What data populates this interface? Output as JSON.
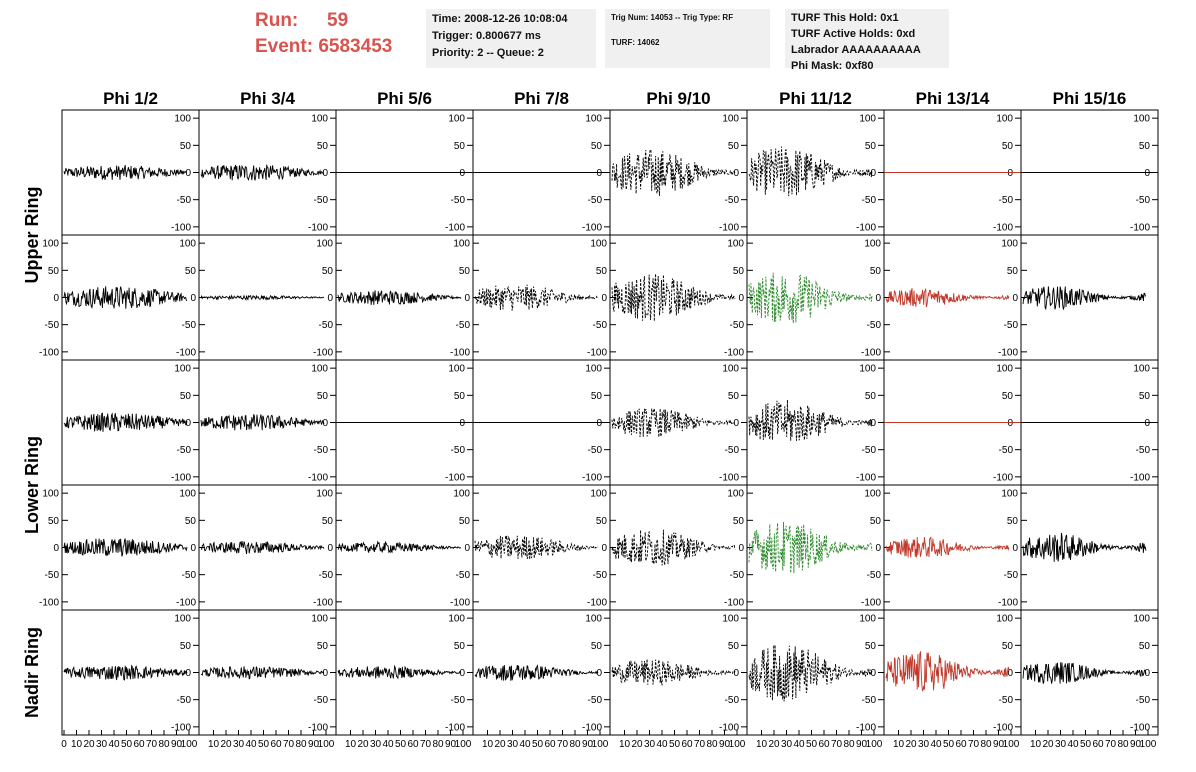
{
  "header": {
    "run_label": "Run:",
    "run_value": "59",
    "event_label": "Event:",
    "event_value": "6583453",
    "time": "Time: 2008-12-26 10:08:04",
    "trigger": "Trigger: 0.800677 ms",
    "priority": "Priority: 2 -- Queue: 2",
    "trig_num": "Trig Num: 14053 -- Trig Type: RF",
    "turf": "TURF: 14062",
    "turf_hold": "TURF This Hold: 0x1",
    "turf_active": "TURF Active Holds: 0xd",
    "labrador": "Labrador AAAAAAAAAA",
    "phi_mask": "Phi Mask: 0xf80"
  },
  "colors": {
    "title_red": "#d9534f",
    "black": "#000000",
    "green": "#2a8a2a",
    "red": "#c0392b",
    "info_bg": "#f0f0f0"
  },
  "chart_data": {
    "type": "line",
    "columns": [
      "Phi 1/2",
      "Phi 3/4",
      "Phi 5/6",
      "Phi 7/8",
      "Phi 9/10",
      "Phi 11/12",
      "Phi 13/14",
      "Phi 15/16"
    ],
    "rings": [
      "Upper Ring",
      "Lower Ring",
      "Nadir Ring"
    ],
    "ylim": [
      -115,
      115
    ],
    "yticks": [
      -100,
      -50,
      0,
      50,
      100
    ],
    "xlim": [
      0,
      100
    ],
    "xticks": [
      0,
      10,
      20,
      30,
      40,
      50,
      60,
      70,
      80,
      90,
      100
    ],
    "rows": [
      {
        "ring": "Upper Ring",
        "axis_side": "right",
        "panels": [
          {
            "style": "solid",
            "color": "black",
            "amp": 14,
            "drawn": true
          },
          {
            "style": "solid",
            "color": "black",
            "amp": 16,
            "drawn": true
          },
          {
            "style": "flat",
            "color": "black",
            "amp": 0,
            "drawn": true
          },
          {
            "style": "flat",
            "color": "black",
            "amp": 0,
            "drawn": true
          },
          {
            "style": "dashed",
            "color": "black",
            "amp": 45,
            "drawn": true
          },
          {
            "style": "dashed",
            "color": "black",
            "amp": 50,
            "drawn": true
          },
          {
            "style": "flat",
            "color": "red",
            "amp": 0,
            "drawn": true
          },
          {
            "style": "flat",
            "color": "black",
            "amp": 0,
            "drawn": true
          }
        ]
      },
      {
        "ring": "Upper Ring",
        "axis_side": "left",
        "panels": [
          {
            "style": "solid",
            "color": "black",
            "amp": 22,
            "drawn": true
          },
          {
            "style": "solid",
            "color": "black",
            "amp": 4,
            "drawn": true
          },
          {
            "style": "solid",
            "color": "black",
            "amp": 14,
            "drawn": true
          },
          {
            "style": "dashed",
            "color": "black",
            "amp": 25,
            "drawn": true
          },
          {
            "style": "dashed",
            "color": "black",
            "amp": 45,
            "drawn": true
          },
          {
            "style": "dashed",
            "color": "green",
            "amp": 50,
            "drawn": true
          },
          {
            "style": "solid",
            "color": "red",
            "amp": 18,
            "drawn": true
          },
          {
            "style": "solid",
            "color": "black",
            "amp": 22,
            "drawn": true
          }
        ]
      },
      {
        "ring": "Lower Ring",
        "axis_side": "right",
        "panels": [
          {
            "style": "solid",
            "color": "black",
            "amp": 18,
            "drawn": true
          },
          {
            "style": "solid",
            "color": "black",
            "amp": 16,
            "drawn": true
          },
          {
            "style": "flat",
            "color": "black",
            "amp": 0,
            "drawn": true
          },
          {
            "style": "flat",
            "color": "black",
            "amp": 0,
            "drawn": true
          },
          {
            "style": "dashed",
            "color": "black",
            "amp": 28,
            "drawn": true
          },
          {
            "style": "dashed",
            "color": "black",
            "amp": 42,
            "drawn": true
          },
          {
            "style": "flat",
            "color": "red",
            "amp": 0,
            "drawn": true
          },
          {
            "style": "flat",
            "color": "black",
            "amp": 0,
            "drawn": true
          }
        ]
      },
      {
        "ring": "Lower Ring",
        "axis_side": "left",
        "panels": [
          {
            "style": "solid",
            "color": "black",
            "amp": 18,
            "drawn": true
          },
          {
            "style": "solid",
            "color": "black",
            "amp": 12,
            "drawn": true
          },
          {
            "style": "solid",
            "color": "black",
            "amp": 10,
            "drawn": true
          },
          {
            "style": "dashed",
            "color": "black",
            "amp": 24,
            "drawn": true
          },
          {
            "style": "dashed",
            "color": "black",
            "amp": 35,
            "drawn": true
          },
          {
            "style": "dashed",
            "color": "green",
            "amp": 50,
            "drawn": true
          },
          {
            "style": "solid",
            "color": "red",
            "amp": 20,
            "drawn": true
          },
          {
            "style": "solid",
            "color": "black",
            "amp": 28,
            "drawn": true
          }
        ]
      },
      {
        "ring": "Nadir Ring",
        "axis_side": "right",
        "panels": [
          {
            "style": "solid",
            "color": "black",
            "amp": 14,
            "drawn": true
          },
          {
            "style": "solid",
            "color": "black",
            "amp": 12,
            "drawn": true
          },
          {
            "style": "solid",
            "color": "black",
            "amp": 12,
            "drawn": true
          },
          {
            "style": "solid",
            "color": "black",
            "amp": 16,
            "drawn": true
          },
          {
            "style": "dashed",
            "color": "black",
            "amp": 25,
            "drawn": true
          },
          {
            "style": "dashed",
            "color": "black",
            "amp": 55,
            "drawn": true
          },
          {
            "style": "solid",
            "color": "red",
            "amp": 40,
            "drawn": true
          },
          {
            "style": "solid",
            "color": "black",
            "amp": 22,
            "drawn": true
          }
        ]
      }
    ]
  }
}
